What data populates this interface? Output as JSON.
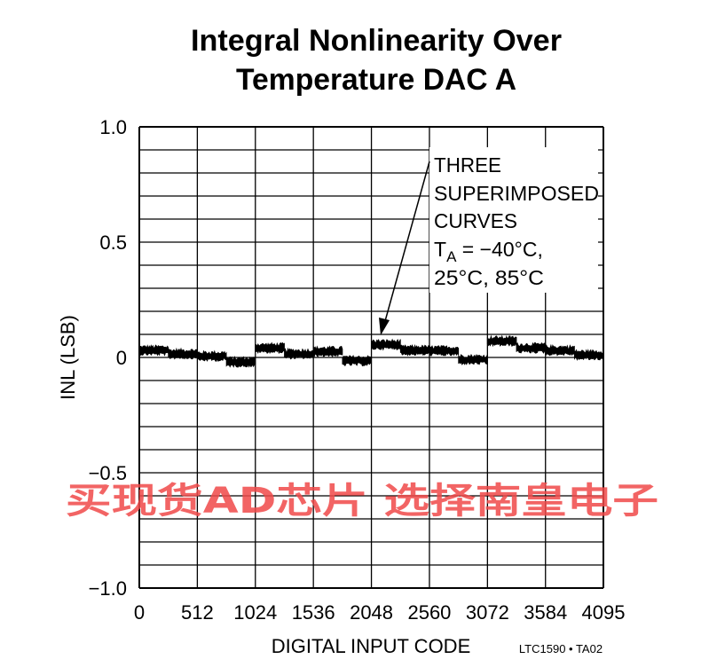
{
  "chart_data": {
    "type": "line",
    "title_lines": [
      "Integral Nonlinearity Over",
      "Temperature DAC A"
    ],
    "xlabel": "DIGITAL INPUT CODE",
    "ylabel": "INL (LSB)",
    "xlim": [
      0,
      4095
    ],
    "ylim": [
      -1.0,
      1.0
    ],
    "x_ticks": [
      0,
      512,
      1024,
      1536,
      2048,
      2560,
      3072,
      3584,
      4095
    ],
    "x_tick_labels": [
      "0",
      "512",
      "1024",
      "1536",
      "2048",
      "2560",
      "3072",
      "3584",
      "4095"
    ],
    "y_ticks": [
      1.0,
      0.5,
      0,
      -0.5,
      -1.0
    ],
    "y_tick_labels": [
      "1.0",
      "0.5",
      "0",
      "−0.5",
      "−1.0"
    ],
    "grid": true,
    "grid_x_step": 512,
    "grid_y_step": 0.1,
    "series": [
      {
        "name": "Three superimposed curves (-40°C, 25°C, 85°C)",
        "segment_width_codes": 256,
        "segment_levels": [
          0.03,
          0.015,
          0.005,
          -0.02,
          0.04,
          0.015,
          0.025,
          -0.015,
          0.055,
          0.03,
          0.028,
          -0.01,
          0.07,
          0.04,
          0.03,
          0.01
        ],
        "noise_amplitude": 0.02,
        "color": "#000000"
      }
    ],
    "annotation": {
      "lines": [
        "THREE",
        "SUPERIMPOSED",
        "CURVES",
        "T",
        "A",
        " = −40°C,",
        "25°C, 85°C"
      ],
      "arrow_target": {
        "x": 2100,
        "y": 0.1
      }
    },
    "figure_id": "LTC1590 • TA02"
  },
  "watermark": "买现货AD芯片 选择南皇电子"
}
